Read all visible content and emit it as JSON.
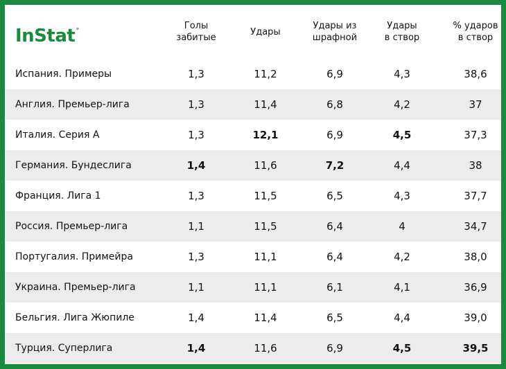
{
  "logo": {
    "text": "InStat",
    "mark": "°"
  },
  "chart_data": {
    "type": "table",
    "columns": [
      "Голы\nзабитые",
      "Удары",
      "Удары из\nшрафной",
      "Удары\nв створ",
      "% ударов\nв створ"
    ],
    "rows": [
      {
        "name": "Испания. Примеры",
        "values": [
          "1,3",
          "11,2",
          "6,9",
          "4,3",
          "38,6"
        ],
        "bold": [
          false,
          false,
          false,
          false,
          false
        ]
      },
      {
        "name": "Англия. Премьер-лига",
        "values": [
          "1,3",
          "11,4",
          "6,8",
          "4,2",
          "37"
        ],
        "bold": [
          false,
          false,
          false,
          false,
          false
        ]
      },
      {
        "name": "Италия. Серия А",
        "values": [
          "1,3",
          "12,1",
          "6,9",
          "4,5",
          "37,3"
        ],
        "bold": [
          false,
          true,
          false,
          true,
          false
        ]
      },
      {
        "name": "Германия. Бундеслига",
        "values": [
          "1,4",
          "11,6",
          "7,2",
          "4,4",
          "38"
        ],
        "bold": [
          true,
          false,
          true,
          false,
          false
        ]
      },
      {
        "name": "Франция. Лига 1",
        "values": [
          "1,3",
          "11,5",
          "6,5",
          "4,3",
          "37,7"
        ],
        "bold": [
          false,
          false,
          false,
          false,
          false
        ]
      },
      {
        "name": "Россия. Премьер-лига",
        "values": [
          "1,1",
          "11,5",
          "6,4",
          "4",
          "34,7"
        ],
        "bold": [
          false,
          false,
          false,
          false,
          false
        ]
      },
      {
        "name": "Португалия. Примейра",
        "values": [
          "1,3",
          "11,1",
          "6,4",
          "4,2",
          "38,0"
        ],
        "bold": [
          false,
          false,
          false,
          false,
          false
        ]
      },
      {
        "name": "Украина. Премьер-лига",
        "values": [
          "1,1",
          "11,1",
          "6,1",
          "4,1",
          "36,9"
        ],
        "bold": [
          false,
          false,
          false,
          false,
          false
        ]
      },
      {
        "name": "Бельгия. Лига Жюпиле",
        "values": [
          "1,4",
          "11,4",
          "6,5",
          "4,4",
          "39,0"
        ],
        "bold": [
          false,
          false,
          false,
          false,
          false
        ]
      },
      {
        "name": "Турция. Суперлига",
        "values": [
          "1,4",
          "11,6",
          "6,9",
          "4,5",
          "39,5"
        ],
        "bold": [
          true,
          false,
          false,
          true,
          true
        ]
      }
    ]
  },
  "colors": {
    "frame": "#1a8a3e",
    "stripe": "#ececec",
    "logo": "#1a8a3e"
  }
}
